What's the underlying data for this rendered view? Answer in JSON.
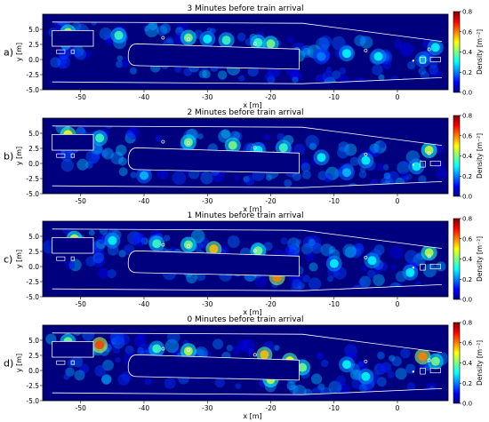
{
  "figure": {
    "colorbar": {
      "label": "Density [m⁻²]",
      "ticks": [
        "0.0",
        "0.2",
        "0.4",
        "0.6",
        "0.8"
      ],
      "range": [
        0,
        0.8
      ],
      "colors": [
        "#00007f",
        "#0000ff",
        "#007fff",
        "#00ffff",
        "#7fff7f",
        "#ffff00",
        "#ff7f00",
        "#ff0000",
        "#7f0000"
      ]
    }
  },
  "chart_data": [
    {
      "type": "heatmap",
      "panel_label": "a)",
      "title": "3 Minutes before train arrival",
      "xlabel": "x [m]",
      "ylabel": "y [m]",
      "xlim": [
        -56,
        8
      ],
      "ylim": [
        -5,
        7.5
      ],
      "xticks": [
        -50,
        -40,
        -30,
        -20,
        -10,
        0
      ],
      "yticks": [
        -5.0,
        -2.5,
        0.0,
        2.5,
        5.0
      ],
      "hotspots": [
        {
          "x": -52,
          "y": 4.5,
          "value": 0.45
        },
        {
          "x": -44,
          "y": 4.0,
          "value": 0.35
        },
        {
          "x": -33,
          "y": 3.6,
          "value": 0.4
        },
        {
          "x": -27,
          "y": 3.2,
          "value": 0.35
        },
        {
          "x": -20,
          "y": 2.6,
          "value": 0.4
        },
        {
          "x": -22,
          "y": 2.8,
          "value": 0.35
        },
        {
          "x": -30,
          "y": 3.4,
          "value": 0.3
        },
        {
          "x": -8,
          "y": 1.0,
          "value": 0.3
        },
        {
          "x": -3,
          "y": 0.5,
          "value": 0.3
        },
        {
          "x": 4,
          "y": 0.0,
          "value": 0.25
        },
        {
          "x": 6,
          "y": 2.0,
          "value": 0.3
        },
        {
          "x": -12,
          "y": 0.5,
          "value": 0.2
        }
      ]
    },
    {
      "type": "heatmap",
      "panel_label": "b)",
      "title": "2 Minutes before train arrival",
      "xlabel": "x [m]",
      "ylabel": "y [m]",
      "xlim": [
        -56,
        8
      ],
      "ylim": [
        -5,
        7.5
      ],
      "xticks": [
        -50,
        -40,
        -30,
        -20,
        -10,
        0
      ],
      "yticks": [
        -5.0,
        -2.5,
        0.0,
        2.5,
        5.0
      ],
      "hotspots": [
        {
          "x": -52,
          "y": 4.8,
          "value": 0.5
        },
        {
          "x": -47,
          "y": 4.2,
          "value": 0.35
        },
        {
          "x": -33,
          "y": 3.5,
          "value": 0.4
        },
        {
          "x": -26,
          "y": 3.0,
          "value": 0.4
        },
        {
          "x": -18,
          "y": 2.6,
          "value": 0.35
        },
        {
          "x": -22,
          "y": 2.2,
          "value": 0.3
        },
        {
          "x": -40,
          "y": -2.0,
          "value": 0.25
        },
        {
          "x": -12,
          "y": 1.0,
          "value": 0.3
        },
        {
          "x": -5,
          "y": 0.5,
          "value": 0.3
        },
        {
          "x": 5,
          "y": 2.2,
          "value": 0.45
        },
        {
          "x": 3,
          "y": -0.5,
          "value": 0.3
        },
        {
          "x": -8,
          "y": -1.5,
          "value": 0.25
        }
      ]
    },
    {
      "type": "heatmap",
      "panel_label": "c)",
      "title": "1 Minutes before train arrival",
      "xlabel": "x [m]",
      "ylabel": "y [m]",
      "xlim": [
        -56,
        8
      ],
      "ylim": [
        -5,
        7.5
      ],
      "xticks": [
        -50,
        -40,
        -30,
        -20,
        -10,
        0
      ],
      "yticks": [
        -5.0,
        -2.5,
        0.0,
        2.5,
        5.0
      ],
      "hotspots": [
        {
          "x": -51,
          "y": 4.6,
          "value": 0.45
        },
        {
          "x": -38,
          "y": 3.8,
          "value": 0.35
        },
        {
          "x": -29,
          "y": 2.9,
          "value": 0.55
        },
        {
          "x": -19,
          "y": -1.8,
          "value": 0.6
        },
        {
          "x": -22,
          "y": 2.6,
          "value": 0.4
        },
        {
          "x": -33,
          "y": 3.6,
          "value": 0.4
        },
        {
          "x": -25,
          "y": 0.0,
          "value": 0.3
        },
        {
          "x": -10,
          "y": 0.5,
          "value": 0.3
        },
        {
          "x": -4,
          "y": 1.0,
          "value": 0.3
        },
        {
          "x": 5,
          "y": 2.3,
          "value": 0.45
        },
        {
          "x": 2,
          "y": -1.0,
          "value": 0.3
        },
        {
          "x": -45,
          "y": 4.3,
          "value": 0.3
        }
      ]
    },
    {
      "type": "heatmap",
      "panel_label": "d)",
      "title": "0 Minutes before train arrival",
      "xlabel": "x [m]",
      "ylabel": "y [m]",
      "xlim": [
        -56,
        8
      ],
      "ylim": [
        -5,
        7.5
      ],
      "xticks": [
        -50,
        -40,
        -30,
        -20,
        -10,
        0
      ],
      "yticks": [
        -5.0,
        -2.5,
        0.0,
        2.5,
        5.0
      ],
      "hotspots": [
        {
          "x": -47,
          "y": 4.2,
          "value": 0.65
        },
        {
          "x": -52,
          "y": 4.8,
          "value": 0.4
        },
        {
          "x": -33,
          "y": 3.2,
          "value": 0.45
        },
        {
          "x": -21,
          "y": 2.6,
          "value": 0.55
        },
        {
          "x": -17,
          "y": 1.6,
          "value": 0.5
        },
        {
          "x": -20,
          "y": -1.5,
          "value": 0.45
        },
        {
          "x": -15,
          "y": 0.5,
          "value": 0.4
        },
        {
          "x": -38,
          "y": 3.6,
          "value": 0.35
        },
        {
          "x": 4,
          "y": 2.3,
          "value": 0.6
        },
        {
          "x": 6,
          "y": 1.5,
          "value": 0.4
        },
        {
          "x": -5,
          "y": -1.0,
          "value": 0.3
        },
        {
          "x": -8,
          "y": 1.0,
          "value": 0.3
        }
      ]
    }
  ]
}
